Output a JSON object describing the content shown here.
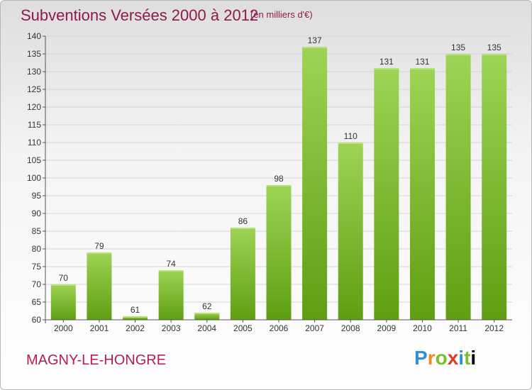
{
  "header": {
    "title": "Subventions Versées 2000 à 2012",
    "unit": "(en milliers d'€)"
  },
  "footer": {
    "commune": "MAGNY-LE-HONGRE",
    "logo_text": "Proxiti"
  },
  "colors": {
    "bar_top": "#9ed455",
    "bar_bottom": "#5f9e12",
    "title": "#8f1a49",
    "commune": "#b3204f"
  },
  "chart_data": {
    "type": "bar",
    "categories": [
      "2000",
      "2001",
      "2002",
      "2003",
      "2004",
      "2005",
      "2006",
      "2007",
      "2008",
      "2009",
      "2010",
      "2011",
      "2012"
    ],
    "values": [
      70,
      79,
      61,
      74,
      62,
      86,
      98,
      137,
      110,
      131,
      131,
      135,
      135
    ],
    "data_labels": [
      "70",
      "79",
      "61",
      "74",
      "62",
      "86",
      "98",
      "137",
      "110",
      "131",
      "131",
      "135",
      "135"
    ],
    "title": "Subventions Versées 2000 à 2012",
    "xlabel": "",
    "ylabel": "",
    "ylim": [
      60,
      140
    ],
    "yticks": [
      60,
      65,
      70,
      75,
      80,
      85,
      90,
      95,
      100,
      105,
      110,
      115,
      120,
      125,
      130,
      135,
      140
    ],
    "grid": true,
    "legend": "none"
  }
}
